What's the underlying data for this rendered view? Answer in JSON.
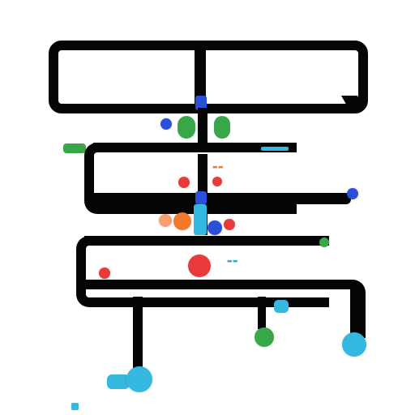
{
  "labels": {
    "top_left": "",
    "top_right": "",
    "l1a": "",
    "l1b": "",
    "l1c": "",
    "l2a": "",
    "l2b": "",
    "l2c": "",
    "l3a": "",
    "l3b": "",
    "l4a": "",
    "l4b": "",
    "l4c": "",
    "l4d": "",
    "l4e": "",
    "l5a": "",
    "l5b": "",
    "l5c": "",
    "l5d": "",
    "l5e": "",
    "l5f": "",
    "bottom": ""
  },
  "colors": {
    "line": "#050505",
    "blue": "#2b4fd8",
    "green": "#3aa64a",
    "red": "#e83a3a",
    "orange": "#f07a2a",
    "cyan": "#34b8e0",
    "peach": "#f5a070"
  }
}
